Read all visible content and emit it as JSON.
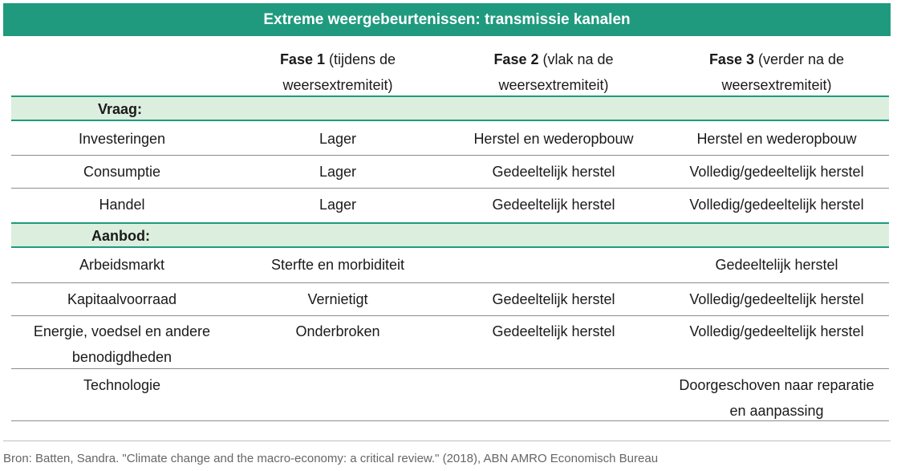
{
  "title": "Extreme weergebeurtenissen: transmissie kanalen",
  "headers": [
    {
      "bold": "Fase 1",
      "rest_line1": " (tijdens de",
      "line2": "weersextremiteit)"
    },
    {
      "bold": "Fase 2",
      "rest_line1": " (vlak na de",
      "line2": "weersextremiteit)"
    },
    {
      "bold": "Fase 3",
      "rest_line1": " (verder na de",
      "line2": "weersextremiteit)"
    }
  ],
  "sections": {
    "demand": "Vraag:",
    "supply": "Aanbod:"
  },
  "demand_rows": [
    {
      "label": "Investeringen",
      "f1": "Lager",
      "f2": "Herstel en wederopbouw",
      "f3": "Herstel en wederopbouw"
    },
    {
      "label": "Consumptie",
      "f1": "Lager",
      "f2": "Gedeeltelijk herstel",
      "f3": "Volledig/gedeeltelijk herstel"
    },
    {
      "label": "Handel",
      "f1": "Lager",
      "f2": "Gedeeltelijk herstel",
      "f3": "Volledig/gedeeltelijk herstel"
    }
  ],
  "supply_rows": [
    {
      "label": "Arbeidsmarkt",
      "f1": "Sterfte en morbiditeit",
      "f2": "",
      "f3": "Gedeeltelijk herstel"
    },
    {
      "label": "Kapitaalvoorraad",
      "f1": "Vernietigt",
      "f2": "Gedeeltelijk herstel",
      "f3": "Volledig/gedeeltelijk herstel"
    },
    {
      "label_line1": "Energie, voedsel en andere",
      "label_line2": "benodigdheden",
      "f1": "Onderbroken",
      "f2": "Gedeeltelijk herstel",
      "f3": "Volledig/gedeeltelijk herstel"
    },
    {
      "label": "Technologie",
      "f1": "",
      "f2": "",
      "f3_line1": "Doorgeschoven naar reparatie",
      "f3_line2": "en aanpassing"
    }
  ],
  "source": "Bron: Batten, Sandra. \"Climate change and the macro-economy: a critical review.\" (2018), ABN AMRO Economisch Bureau",
  "colors": {
    "accent": "#1f9a7f",
    "section_bg": "#dceedd"
  }
}
